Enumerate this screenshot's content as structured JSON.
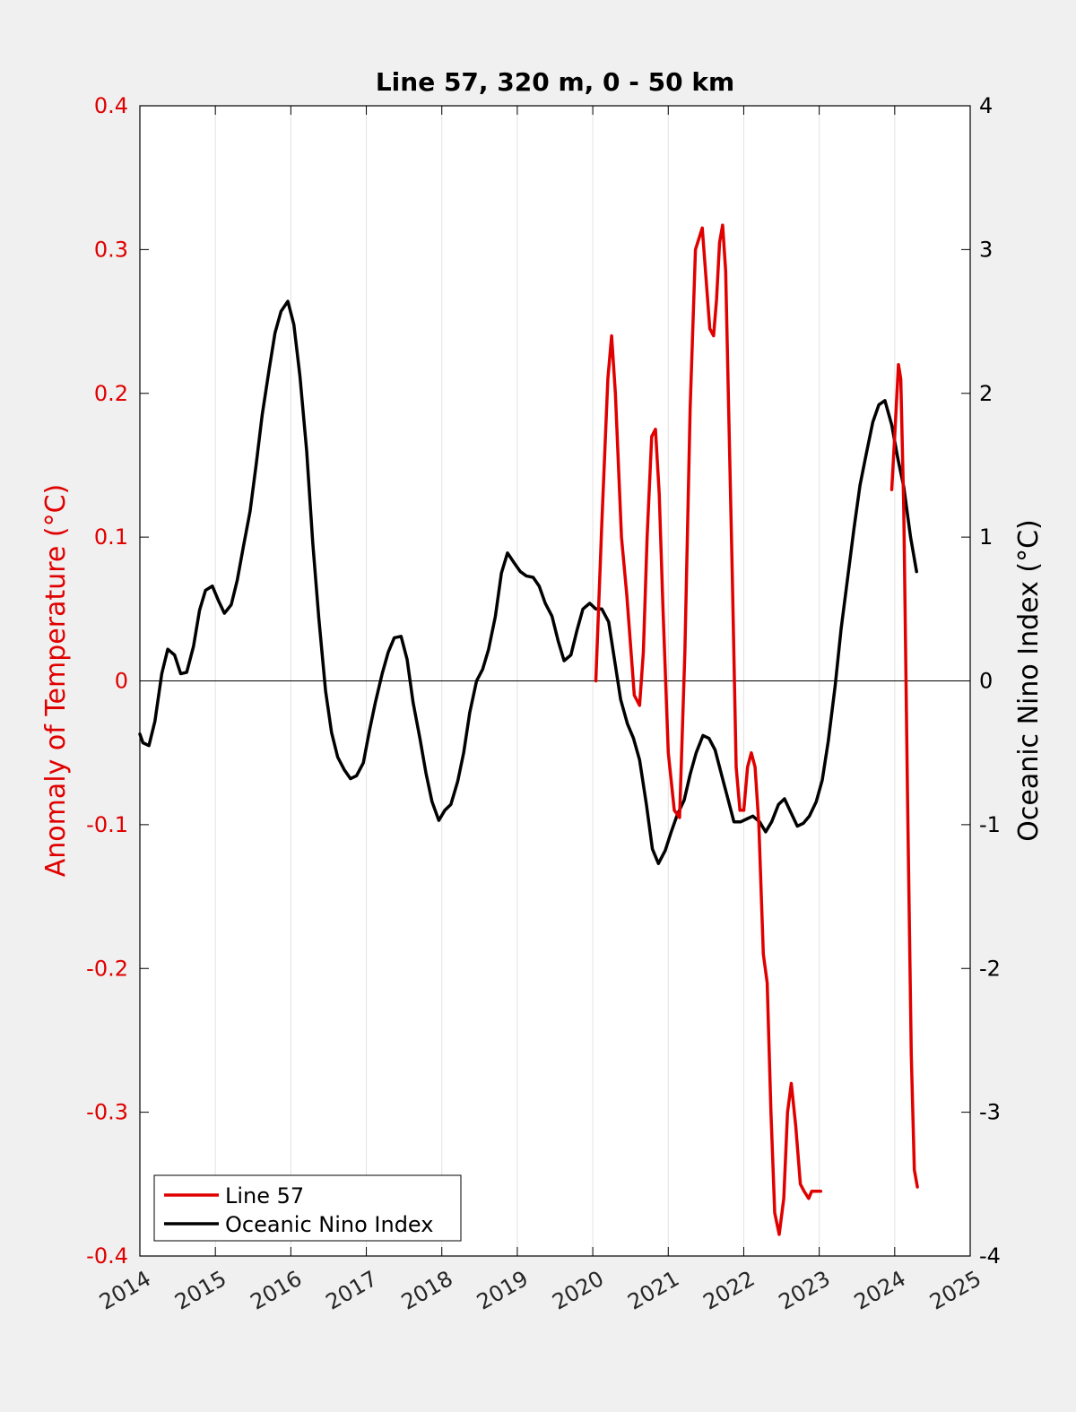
{
  "chart_data": {
    "type": "line",
    "title": "Line 57, 320 m, 0 - 50 km",
    "xlabel": "",
    "ylabel_left": "Anomaly of Temperature (°C)",
    "ylabel_right": "Oceanic Nino Index (°C)",
    "xlim": [
      2014,
      2025
    ],
    "ylim_left": [
      -0.4,
      0.4
    ],
    "ylim_right": [
      -4,
      4
    ],
    "x_ticks": [
      "2014",
      "2015",
      "2016",
      "2017",
      "2018",
      "2019",
      "2020",
      "2021",
      "2022",
      "2023",
      "2024",
      "2025"
    ],
    "y_ticks_left": [
      "-0.4",
      "-0.3",
      "-0.2",
      "-0.1",
      "0",
      "0.1",
      "0.2",
      "0.3",
      "0.4"
    ],
    "y_ticks_right": [
      "-4",
      "-3",
      "-2",
      "-1",
      "0",
      "1",
      "2",
      "3",
      "4"
    ],
    "grid": "vertical",
    "zero_line": true,
    "legend_position": "bottom-left",
    "colors": {
      "left_axis": "#e00000",
      "right_axis": "#000000",
      "line57": "#e00000",
      "oni": "#000000"
    },
    "series": [
      {
        "name": "Line 57",
        "axis": "left",
        "segments": [
          {
            "x": [
              2020.04,
              2020.12,
              2020.2,
              2020.25,
              2020.3,
              2020.38,
              2020.45,
              2020.55,
              2020.62,
              2020.67,
              2020.72,
              2020.78,
              2020.83,
              2020.88,
              2020.93,
              2021.0,
              2021.08,
              2021.15,
              2021.22,
              2021.29,
              2021.36,
              2021.45,
              2021.55,
              2021.6,
              2021.64,
              2021.68,
              2021.72,
              2021.76,
              2021.8,
              2021.85,
              2021.9,
              2021.95,
              2022.0,
              2022.05,
              2022.1,
              2022.15,
              2022.2,
              2022.26,
              2022.31,
              2022.36,
              2022.41,
              2022.47,
              2022.53,
              2022.58,
              2022.63,
              2022.69,
              2022.75,
              2022.8,
              2022.86,
              2022.9,
              2022.95,
              2022.98,
              2023.02
            ],
            "y": [
              0.0,
              0.11,
              0.21,
              0.24,
              0.2,
              0.1,
              0.06,
              -0.01,
              -0.017,
              0.02,
              0.1,
              0.17,
              0.175,
              0.13,
              0.05,
              -0.05,
              -0.09,
              -0.095,
              0.02,
              0.19,
              0.3,
              0.315,
              0.245,
              0.24,
              0.265,
              0.305,
              0.317,
              0.285,
              0.19,
              0.07,
              -0.06,
              -0.09,
              -0.09,
              -0.06,
              -0.05,
              -0.06,
              -0.1,
              -0.19,
              -0.21,
              -0.3,
              -0.37,
              -0.385,
              -0.36,
              -0.3,
              -0.28,
              -0.31,
              -0.35,
              -0.355,
              -0.36,
              -0.355,
              -0.355,
              -0.355,
              -0.355
            ]
          },
          {
            "x": [
              2023.96,
              2024.0,
              2024.05,
              2024.08,
              2024.12,
              2024.17,
              2024.22,
              2024.26,
              2024.3
            ],
            "y": [
              0.133,
              0.17,
              0.22,
              0.21,
              0.12,
              -0.08,
              -0.26,
              -0.34,
              -0.352
            ]
          }
        ]
      },
      {
        "name": "Oceanic Nino Index",
        "axis": "right",
        "x": [
          2014.0,
          2014.04,
          2014.12,
          2014.2,
          2014.29,
          2014.37,
          2014.46,
          2014.54,
          2014.62,
          2014.71,
          2014.79,
          2014.87,
          2014.96,
          2015.04,
          2015.12,
          2015.21,
          2015.29,
          2015.37,
          2015.46,
          2015.54,
          2015.62,
          2015.71,
          2015.79,
          2015.87,
          2015.96,
          2016.04,
          2016.12,
          2016.21,
          2016.29,
          2016.37,
          2016.46,
          2016.54,
          2016.62,
          2016.71,
          2016.79,
          2016.87,
          2016.96,
          2017.04,
          2017.12,
          2017.21,
          2017.29,
          2017.37,
          2017.46,
          2017.54,
          2017.62,
          2017.71,
          2017.79,
          2017.87,
          2017.96,
          2018.04,
          2018.12,
          2018.21,
          2018.29,
          2018.37,
          2018.46,
          2018.54,
          2018.62,
          2018.71,
          2018.79,
          2018.87,
          2018.96,
          2019.04,
          2019.12,
          2019.21,
          2019.29,
          2019.37,
          2019.46,
          2019.54,
          2019.62,
          2019.71,
          2019.79,
          2019.87,
          2019.96,
          2020.04,
          2020.12,
          2020.21,
          2020.29,
          2020.37,
          2020.46,
          2020.54,
          2020.62,
          2020.71,
          2020.79,
          2020.87,
          2020.96,
          2021.04,
          2021.12,
          2021.21,
          2021.29,
          2021.37,
          2021.46,
          2021.54,
          2021.62,
          2021.71,
          2021.79,
          2021.87,
          2021.96,
          2022.04,
          2022.12,
          2022.21,
          2022.29,
          2022.37,
          2022.46,
          2022.54,
          2022.62,
          2022.71,
          2022.79,
          2022.87,
          2022.96,
          2023.04,
          2023.12,
          2023.21,
          2023.29,
          2023.37,
          2023.46,
          2023.54,
          2023.62,
          2023.71,
          2023.79,
          2023.87,
          2023.96,
          2024.04,
          2024.12,
          2024.21,
          2024.29
        ],
        "y": [
          -0.37,
          -0.43,
          -0.45,
          -0.28,
          0.05,
          0.22,
          0.18,
          0.05,
          0.06,
          0.24,
          0.49,
          0.63,
          0.66,
          0.56,
          0.47,
          0.53,
          0.7,
          0.93,
          1.18,
          1.5,
          1.85,
          2.16,
          2.42,
          2.57,
          2.64,
          2.48,
          2.12,
          1.6,
          0.96,
          0.44,
          -0.07,
          -0.36,
          -0.53,
          -0.62,
          -0.68,
          -0.66,
          -0.57,
          -0.35,
          -0.15,
          0.05,
          0.2,
          0.3,
          0.31,
          0.15,
          -0.15,
          -0.4,
          -0.64,
          -0.84,
          -0.97,
          -0.9,
          -0.86,
          -0.7,
          -0.5,
          -0.22,
          0.0,
          0.08,
          0.22,
          0.45,
          0.75,
          0.89,
          0.82,
          0.76,
          0.73,
          0.72,
          0.66,
          0.54,
          0.45,
          0.28,
          0.14,
          0.18,
          0.35,
          0.5,
          0.54,
          0.5,
          0.5,
          0.41,
          0.14,
          -0.13,
          -0.3,
          -0.4,
          -0.55,
          -0.86,
          -1.17,
          -1.27,
          -1.18,
          -1.05,
          -0.93,
          -0.83,
          -0.65,
          -0.5,
          -0.38,
          -0.4,
          -0.48,
          -0.66,
          -0.82,
          -0.98,
          -0.98,
          -0.96,
          -0.94,
          -0.98,
          -1.05,
          -0.98,
          -0.86,
          -0.82,
          -0.91,
          -1.01,
          -0.99,
          -0.94,
          -0.84,
          -0.69,
          -0.42,
          -0.04,
          0.36,
          0.69,
          1.06,
          1.36,
          1.57,
          1.8,
          1.92,
          1.95,
          1.78,
          1.55,
          1.35,
          1.0,
          0.76
        ]
      }
    ]
  }
}
